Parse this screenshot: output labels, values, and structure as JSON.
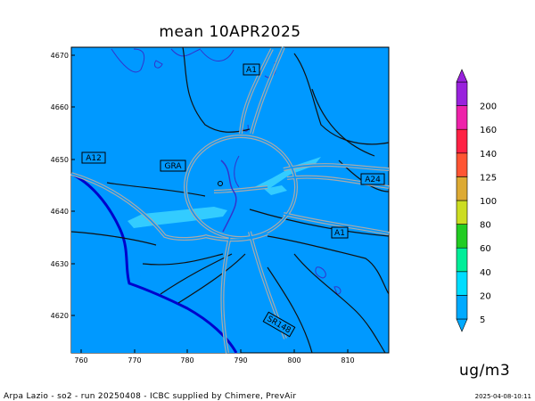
{
  "title": "mean 10APR2025",
  "units": "ug/m3",
  "footer": "Arpa Lazio - so2 - run 20250408 - ICBC supplied by Chimere, PrevAir",
  "timestamp": "2025-04-08-10:11",
  "axes": {
    "x_ticks": [
      "760",
      "770",
      "780",
      "790",
      "800",
      "810"
    ],
    "y_ticks": [
      "4670",
      "4660",
      "4650",
      "4640",
      "4630",
      "4620"
    ]
  },
  "roads": [
    {
      "label": "A1"
    },
    {
      "label": "A12"
    },
    {
      "label": "GRA"
    },
    {
      "label": "A24"
    },
    {
      "label": "A1"
    },
    {
      "label": "SR148"
    }
  ],
  "colorbar": {
    "levels": [
      "5",
      "20",
      "40",
      "60",
      "80",
      "100",
      "125",
      "140",
      "160",
      "200"
    ],
    "colors": [
      "#00aaff",
      "#00ddff",
      "#00ee99",
      "#22cc22",
      "#ccdd22",
      "#ddaa33",
      "#ff5533",
      "#ff2244",
      "#ee22aa",
      "#9922dd"
    ]
  },
  "colors": {
    "background_field": "#0099ff",
    "higher_field": "#33ccff",
    "coastline": "#0000cc"
  }
}
